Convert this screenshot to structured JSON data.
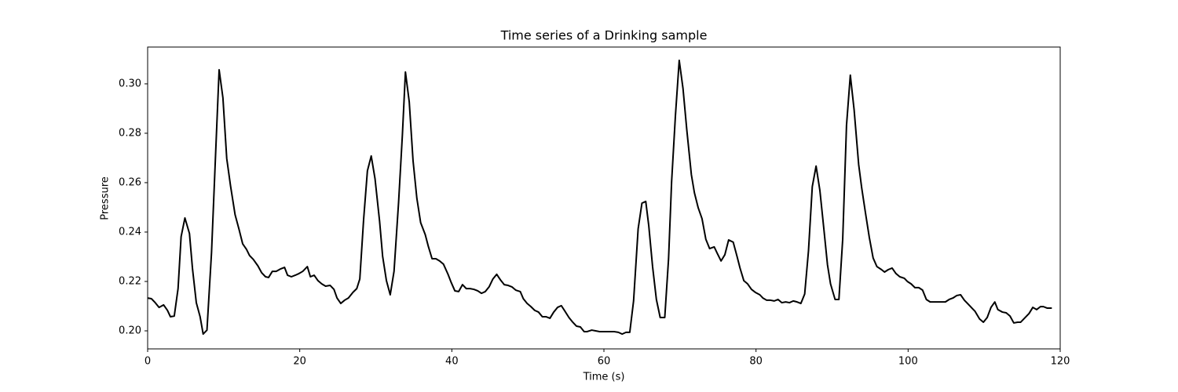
{
  "chart_data": {
    "type": "line",
    "title": "Time series of a Drinking sample",
    "xlabel": "Time (s)",
    "ylabel": "Pressure",
    "xlim": [
      0,
      120
    ],
    "xticks": [
      0,
      20,
      40,
      60,
      80,
      100,
      120
    ],
    "ylim": [
      0.1927,
      0.3149
    ],
    "yticks": [
      {
        "value": 0.2,
        "label": "0.20"
      },
      0.22,
      0.24,
      0.26,
      0.28,
      {
        "value": 0.3,
        "label": "0.30"
      }
    ],
    "grid": false,
    "color": "#000000",
    "x": [
      0,
      0.5,
      1.0,
      1.5,
      2.1,
      2.6,
      3.0,
      3.5,
      4.0,
      4.4,
      4.9,
      5.5,
      5.9,
      6.4,
      6.9,
      7.3,
      7.8,
      8.4,
      8.9,
      9.4,
      9.9,
      10.4,
      10.9,
      11.5,
      12.0,
      12.5,
      13.0,
      13.4,
      13.9,
      14.5,
      15.0,
      15.5,
      15.9,
      16.4,
      16.9,
      17.5,
      18.0,
      18.4,
      18.9,
      19.4,
      19.9,
      20.4,
      21.0,
      21.4,
      21.9,
      22.4,
      22.9,
      23.4,
      24.0,
      24.5,
      24.9,
      25.4,
      25.9,
      26.4,
      27.0,
      27.5,
      27.9,
      28.4,
      28.9,
      29.4,
      29.9,
      30.5,
      30.9,
      31.4,
      31.9,
      32.4,
      33.0,
      33.5,
      33.9,
      34.4,
      34.9,
      35.4,
      35.9,
      36.5,
      36.9,
      37.4,
      37.9,
      38.4,
      38.9,
      39.5,
      39.9,
      40.4,
      40.9,
      41.4,
      41.9,
      42.4,
      42.9,
      43.4,
      43.9,
      44.4,
      44.9,
      45.4,
      45.9,
      46.4,
      46.9,
      47.4,
      47.9,
      48.4,
      49.0,
      49.4,
      49.9,
      50.4,
      50.9,
      51.4,
      51.9,
      52.4,
      52.9,
      53.4,
      53.9,
      54.4,
      54.8,
      55.4,
      55.9,
      56.4,
      56.9,
      57.4,
      57.8,
      58.4,
      58.9,
      59.4,
      60.4,
      61.3,
      61.9,
      62.4,
      62.9,
      63.4,
      63.9,
      64.5,
      65.0,
      65.5,
      65.9,
      66.4,
      66.9,
      67.4,
      68.0,
      68.5,
      68.9,
      69.4,
      69.9,
      70.4,
      70.9,
      71.5,
      71.9,
      72.4,
      72.9,
      73.4,
      73.9,
      74.5,
      74.9,
      75.4,
      75.9,
      76.4,
      77.0,
      77.5,
      77.9,
      78.4,
      78.9,
      79.4,
      79.9,
      80.5,
      80.9,
      81.4,
      81.9,
      82.4,
      82.9,
      83.4,
      83.9,
      84.4,
      84.9,
      85.4,
      85.9,
      86.4,
      86.9,
      87.4,
      87.9,
      88.4,
      88.9,
      89.4,
      89.8,
      90.4,
      90.9,
      91.4,
      91.9,
      92.4,
      92.9,
      93.5,
      93.9,
      94.4,
      94.9,
      95.4,
      95.9,
      96.5,
      96.9,
      97.4,
      97.9,
      98.4,
      98.9,
      99.5,
      99.9,
      100.4,
      100.9,
      101.4,
      101.9,
      102.4,
      102.9,
      103.4,
      104.4,
      104.9,
      105.4,
      105.9,
      106.4,
      106.9,
      107.4,
      107.9,
      108.4,
      108.8,
      109.4,
      109.9,
      110.4,
      110.9,
      111.4,
      111.8,
      112.4,
      112.9,
      113.4,
      113.9,
      114.4,
      114.8,
      115.4,
      115.9,
      116.4,
      116.9,
      117.4,
      117.8,
      118.3,
      118.9
    ],
    "values": [
      0.2133,
      0.213,
      0.2114,
      0.2095,
      0.2105,
      0.2083,
      0.2057,
      0.206,
      0.2171,
      0.2381,
      0.2457,
      0.2394,
      0.2251,
      0.2114,
      0.2057,
      0.1987,
      0.2003,
      0.2317,
      0.2689,
      0.3057,
      0.2943,
      0.2698,
      0.2587,
      0.247,
      0.2413,
      0.2352,
      0.233,
      0.2305,
      0.2289,
      0.2263,
      0.2235,
      0.2219,
      0.2216,
      0.2241,
      0.2241,
      0.2251,
      0.2257,
      0.2225,
      0.2219,
      0.2225,
      0.2232,
      0.2241,
      0.226,
      0.2219,
      0.2225,
      0.2203,
      0.219,
      0.2181,
      0.2184,
      0.2168,
      0.2133,
      0.2111,
      0.2124,
      0.2133,
      0.2156,
      0.2171,
      0.221,
      0.2451,
      0.2648,
      0.2708,
      0.2616,
      0.2444,
      0.2302,
      0.2203,
      0.2146,
      0.2241,
      0.2521,
      0.2794,
      0.3048,
      0.2927,
      0.2689,
      0.2537,
      0.2438,
      0.239,
      0.2343,
      0.2292,
      0.2292,
      0.2283,
      0.227,
      0.2229,
      0.2197,
      0.2162,
      0.2159,
      0.2187,
      0.2171,
      0.2171,
      0.2168,
      0.2162,
      0.2152,
      0.2159,
      0.2178,
      0.221,
      0.2229,
      0.2206,
      0.2187,
      0.2184,
      0.2178,
      0.2165,
      0.2159,
      0.213,
      0.2111,
      0.2098,
      0.2083,
      0.2076,
      0.2057,
      0.2057,
      0.2051,
      0.2076,
      0.2095,
      0.2102,
      0.2083,
      0.2054,
      0.2035,
      0.2019,
      0.2016,
      0.1997,
      0.1997,
      0.2003,
      0.2,
      0.1997,
      0.1997,
      0.1997,
      0.1994,
      0.1987,
      0.1994,
      0.1994,
      0.2121,
      0.2413,
      0.2517,
      0.2524,
      0.2425,
      0.226,
      0.2127,
      0.2054,
      0.2054,
      0.2292,
      0.2603,
      0.287,
      0.3095,
      0.2981,
      0.2813,
      0.2632,
      0.2559,
      0.2498,
      0.2454,
      0.2371,
      0.2333,
      0.234,
      0.2314,
      0.2283,
      0.2308,
      0.2368,
      0.2359,
      0.2302,
      0.2254,
      0.2203,
      0.219,
      0.2168,
      0.2156,
      0.2146,
      0.2133,
      0.2124,
      0.2124,
      0.2121,
      0.2127,
      0.2114,
      0.2117,
      0.2114,
      0.2121,
      0.2117,
      0.2111,
      0.2149,
      0.2324,
      0.2584,
      0.2667,
      0.2568,
      0.2419,
      0.2267,
      0.219,
      0.2127,
      0.2127,
      0.2371,
      0.2832,
      0.3035,
      0.2895,
      0.2673,
      0.2578,
      0.2476,
      0.2378,
      0.2295,
      0.226,
      0.2248,
      0.2238,
      0.2248,
      0.2254,
      0.2232,
      0.2219,
      0.2213,
      0.22,
      0.219,
      0.2175,
      0.2175,
      0.2165,
      0.2127,
      0.2117,
      0.2117,
      0.2117,
      0.2117,
      0.2127,
      0.2133,
      0.2143,
      0.2146,
      0.2124,
      0.2108,
      0.2092,
      0.2079,
      0.2048,
      0.2035,
      0.2054,
      0.2095,
      0.2117,
      0.2086,
      0.2076,
      0.2073,
      0.206,
      0.2032,
      0.2035,
      0.2035,
      0.2054,
      0.207,
      0.2095,
      0.2086,
      0.2098,
      0.2098,
      0.2092,
      0.2092
    ]
  }
}
